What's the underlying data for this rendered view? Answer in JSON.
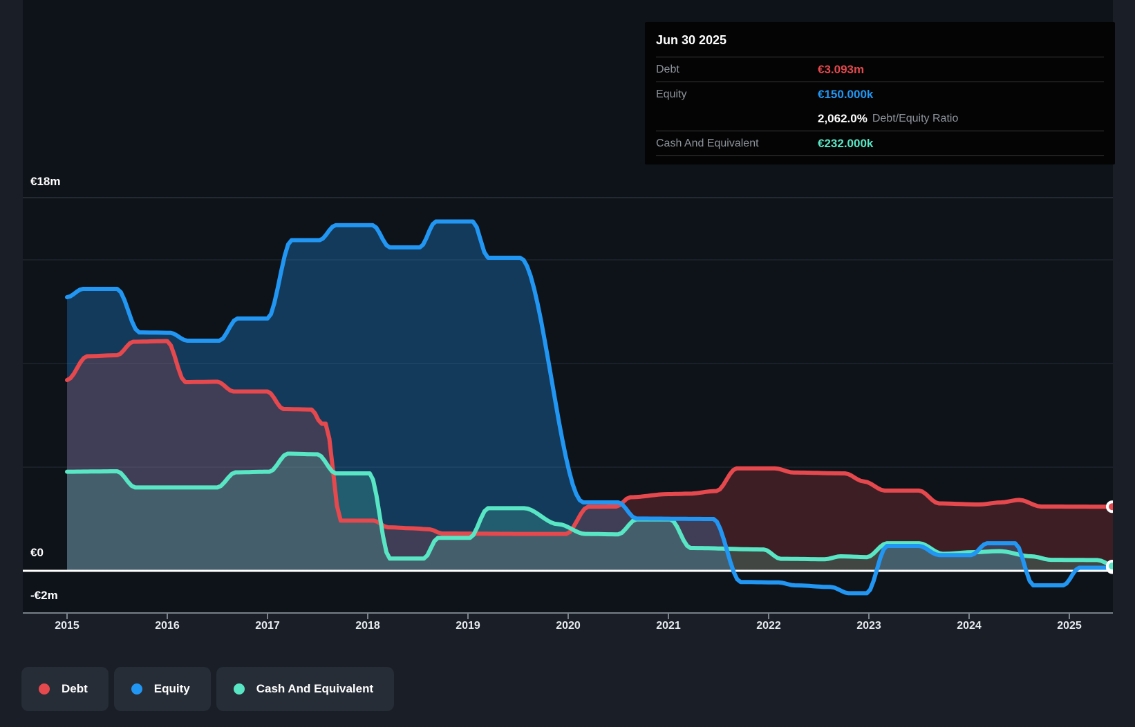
{
  "tooltip": {
    "date": "Jun 30 2025",
    "debt_label": "Debt",
    "debt_value": "€3.093m",
    "equity_label": "Equity",
    "equity_value": "€150.000k",
    "ratio_value": "2,062.0%",
    "ratio_label": "Debt/Equity Ratio",
    "cash_label": "Cash And Equivalent",
    "cash_value": "€232.000k"
  },
  "y_axis": {
    "top_label": "€18m",
    "zero_label": "€0",
    "bottom_label": "-€2m"
  },
  "x_axis": {
    "years": [
      "2015",
      "2016",
      "2017",
      "2018",
      "2019",
      "2020",
      "2021",
      "2022",
      "2023",
      "2024",
      "2025"
    ]
  },
  "legend": {
    "items": [
      {
        "label": "Debt",
        "color": "#e5484d"
      },
      {
        "label": "Equity",
        "color": "#2196f3"
      },
      {
        "label": "Cash And Equivalent",
        "color": "#58e6c4"
      }
    ]
  },
  "colors": {
    "debt": "#e5484d",
    "equity": "#2196f3",
    "cash": "#58e6c4",
    "debt_fill": "rgba(229,72,77,0.22)",
    "equity_fill": "rgba(33,150,243,0.30)",
    "cash_fill": "rgba(88,230,196,0.20)"
  },
  "chart_data": {
    "type": "area",
    "unit": "EUR millions",
    "x_range": [
      2014.56,
      2025.5
    ],
    "ylim": [
      -2,
      18
    ],
    "y_gridlines_m": [
      0,
      5,
      10,
      15,
      18
    ],
    "legend_position": "bottom-left",
    "last_point_date": "Jun 30 2025",
    "series": [
      {
        "name": "Debt",
        "color": "#e5484d",
        "end_value_m": 3.093,
        "points": [
          [
            2015.0,
            9.2
          ],
          [
            2015.2,
            10.35
          ],
          [
            2015.5,
            10.4
          ],
          [
            2015.66,
            11.05
          ],
          [
            2016.0,
            11.08
          ],
          [
            2016.18,
            9.1
          ],
          [
            2016.5,
            9.12
          ],
          [
            2016.66,
            8.65
          ],
          [
            2017.0,
            8.65
          ],
          [
            2017.16,
            7.8
          ],
          [
            2017.44,
            7.78
          ],
          [
            2017.54,
            7.1
          ],
          [
            2017.58,
            7.1
          ],
          [
            2017.73,
            2.42
          ],
          [
            2018.06,
            2.42
          ],
          [
            2018.2,
            2.1
          ],
          [
            2018.45,
            2.05
          ],
          [
            2018.62,
            2.0
          ],
          [
            2018.74,
            1.8
          ],
          [
            2019.6,
            1.78
          ],
          [
            2019.98,
            1.78
          ],
          [
            2020.2,
            3.09
          ],
          [
            2020.48,
            3.1
          ],
          [
            2020.62,
            3.55
          ],
          [
            2021.0,
            3.7
          ],
          [
            2021.2,
            3.72
          ],
          [
            2021.48,
            3.85
          ],
          [
            2021.68,
            4.94
          ],
          [
            2022.06,
            4.94
          ],
          [
            2022.25,
            4.74
          ],
          [
            2022.76,
            4.7
          ],
          [
            2022.95,
            4.31
          ],
          [
            2023.16,
            3.87
          ],
          [
            2023.5,
            3.87
          ],
          [
            2023.7,
            3.25
          ],
          [
            2024.1,
            3.2
          ],
          [
            2024.32,
            3.3
          ],
          [
            2024.5,
            3.42
          ],
          [
            2024.72,
            3.1
          ],
          [
            2025.45,
            3.093
          ]
        ]
      },
      {
        "name": "Equity",
        "color": "#2196f3",
        "end_value_m": 0.15,
        "points": [
          [
            2015.0,
            13.2
          ],
          [
            2015.16,
            13.6
          ],
          [
            2015.5,
            13.6
          ],
          [
            2015.72,
            11.5
          ],
          [
            2016.03,
            11.48
          ],
          [
            2016.2,
            11.1
          ],
          [
            2016.52,
            11.1
          ],
          [
            2016.7,
            12.17
          ],
          [
            2017.0,
            12.17
          ],
          [
            2017.24,
            15.95
          ],
          [
            2017.52,
            15.95
          ],
          [
            2017.68,
            16.67
          ],
          [
            2018.05,
            16.67
          ],
          [
            2018.22,
            15.6
          ],
          [
            2018.52,
            15.6
          ],
          [
            2018.68,
            16.85
          ],
          [
            2019.05,
            16.85
          ],
          [
            2019.2,
            15.1
          ],
          [
            2019.52,
            15.1
          ],
          [
            2020.15,
            3.3
          ],
          [
            2020.5,
            3.3
          ],
          [
            2020.68,
            2.52
          ],
          [
            2021.45,
            2.5
          ],
          [
            2021.72,
            -0.54
          ],
          [
            2022.1,
            -0.56
          ],
          [
            2022.26,
            -0.7
          ],
          [
            2022.62,
            -0.78
          ],
          [
            2022.8,
            -1.08
          ],
          [
            2022.98,
            -1.08
          ],
          [
            2023.18,
            1.2
          ],
          [
            2023.5,
            1.2
          ],
          [
            2023.7,
            0.76
          ],
          [
            2024.02,
            0.76
          ],
          [
            2024.18,
            1.33
          ],
          [
            2024.46,
            1.33
          ],
          [
            2024.64,
            -0.7
          ],
          [
            2024.94,
            -0.7
          ],
          [
            2025.1,
            0.15
          ],
          [
            2025.45,
            0.15
          ]
        ]
      },
      {
        "name": "Cash And Equivalent",
        "color": "#58e6c4",
        "end_value_m": 0.232,
        "points": [
          [
            2015.0,
            4.78
          ],
          [
            2015.5,
            4.8
          ],
          [
            2015.68,
            4.02
          ],
          [
            2016.5,
            4.02
          ],
          [
            2016.68,
            4.75
          ],
          [
            2017.02,
            4.78
          ],
          [
            2017.2,
            5.65
          ],
          [
            2017.5,
            5.62
          ],
          [
            2017.68,
            4.7
          ],
          [
            2018.02,
            4.7
          ],
          [
            2018.22,
            0.59
          ],
          [
            2018.56,
            0.59
          ],
          [
            2018.7,
            1.59
          ],
          [
            2019.02,
            1.59
          ],
          [
            2019.2,
            3.02
          ],
          [
            2019.56,
            3.02
          ],
          [
            2019.9,
            2.25
          ],
          [
            2020.17,
            1.78
          ],
          [
            2020.5,
            1.76
          ],
          [
            2020.68,
            2.48
          ],
          [
            2021.02,
            2.48
          ],
          [
            2021.22,
            1.1
          ],
          [
            2021.95,
            1.03
          ],
          [
            2022.12,
            0.58
          ],
          [
            2022.56,
            0.56
          ],
          [
            2022.72,
            0.7
          ],
          [
            2022.98,
            0.66
          ],
          [
            2023.18,
            1.33
          ],
          [
            2023.5,
            1.33
          ],
          [
            2023.74,
            0.82
          ],
          [
            2024.05,
            0.9
          ],
          [
            2024.3,
            0.95
          ],
          [
            2024.62,
            0.7
          ],
          [
            2024.82,
            0.53
          ],
          [
            2025.28,
            0.52
          ],
          [
            2025.45,
            0.232
          ]
        ]
      }
    ]
  }
}
